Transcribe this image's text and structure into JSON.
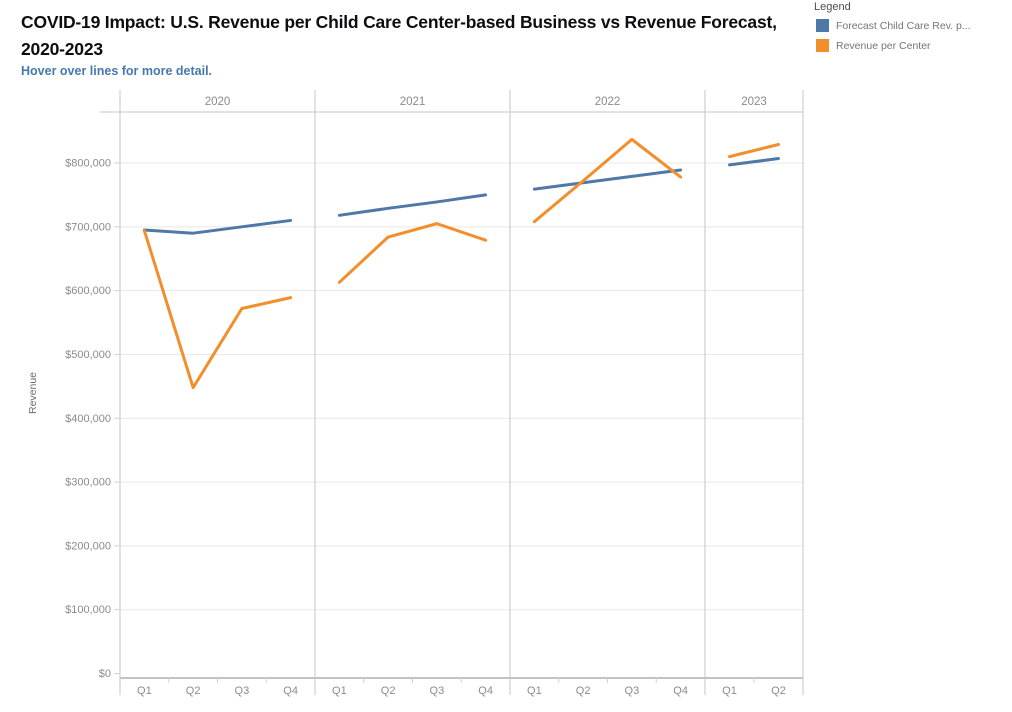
{
  "header": {
    "title": "COVID-19 Impact: U.S. Revenue per Child Care Center-based Business vs Revenue Forecast, 2020-2023",
    "subtitle": "Hover over lines for more detail."
  },
  "legend": {
    "title": "Legend",
    "items": [
      {
        "label": "Forecast Child Care Rev. p...",
        "color": "#4e79a7"
      },
      {
        "label": "Revenue per Center",
        "color": "#f28e2b"
      }
    ]
  },
  "chart_data": {
    "type": "line",
    "title": "COVID-19 Impact: U.S. Revenue per Child Care Center-based Business vs Revenue Forecast, 2020-2023",
    "subtitle": "Hover over lines for more detail.",
    "ylabel": "Revenue",
    "xlabel": "",
    "ylim": [
      0,
      880000
    ],
    "grid": true,
    "legend_position": "top-right",
    "y_ticks": [
      {
        "value": 0,
        "label": "$0"
      },
      {
        "value": 100000,
        "label": "$100,000"
      },
      {
        "value": 200000,
        "label": "$200,000"
      },
      {
        "value": 300000,
        "label": "$300,000"
      },
      {
        "value": 400000,
        "label": "$400,000"
      },
      {
        "value": 500000,
        "label": "$500,000"
      },
      {
        "value": 600000,
        "label": "$600,000"
      },
      {
        "value": 700000,
        "label": "$700,000"
      },
      {
        "value": 800000,
        "label": "$800,000"
      }
    ],
    "panels": [
      {
        "year": "2020",
        "quarters": [
          "Q1",
          "Q2",
          "Q3",
          "Q4"
        ]
      },
      {
        "year": "2021",
        "quarters": [
          "Q1",
          "Q2",
          "Q3",
          "Q4"
        ]
      },
      {
        "year": "2022",
        "quarters": [
          "Q1",
          "Q2",
          "Q3",
          "Q4"
        ]
      },
      {
        "year": "2023",
        "quarters": [
          "Q1",
          "Q2"
        ]
      }
    ],
    "series": [
      {
        "name": "Forecast Child Care Rev. p...",
        "color": "#4e79a7",
        "values": {
          "2020": [
            695000,
            690000,
            700000,
            710000
          ],
          "2021": [
            718000,
            729000,
            739000,
            750000
          ],
          "2022": [
            759000,
            769000,
            779000,
            789000
          ],
          "2023": [
            797000,
            807000
          ]
        }
      },
      {
        "name": "Revenue per Center",
        "color": "#f28e2b",
        "values": {
          "2020": [
            694000,
            448000,
            572000,
            589000
          ],
          "2021": [
            613000,
            684000,
            705000,
            679000
          ],
          "2022": [
            708000,
            772000,
            837000,
            778000
          ],
          "2023": [
            810000,
            829000
          ]
        }
      }
    ]
  }
}
